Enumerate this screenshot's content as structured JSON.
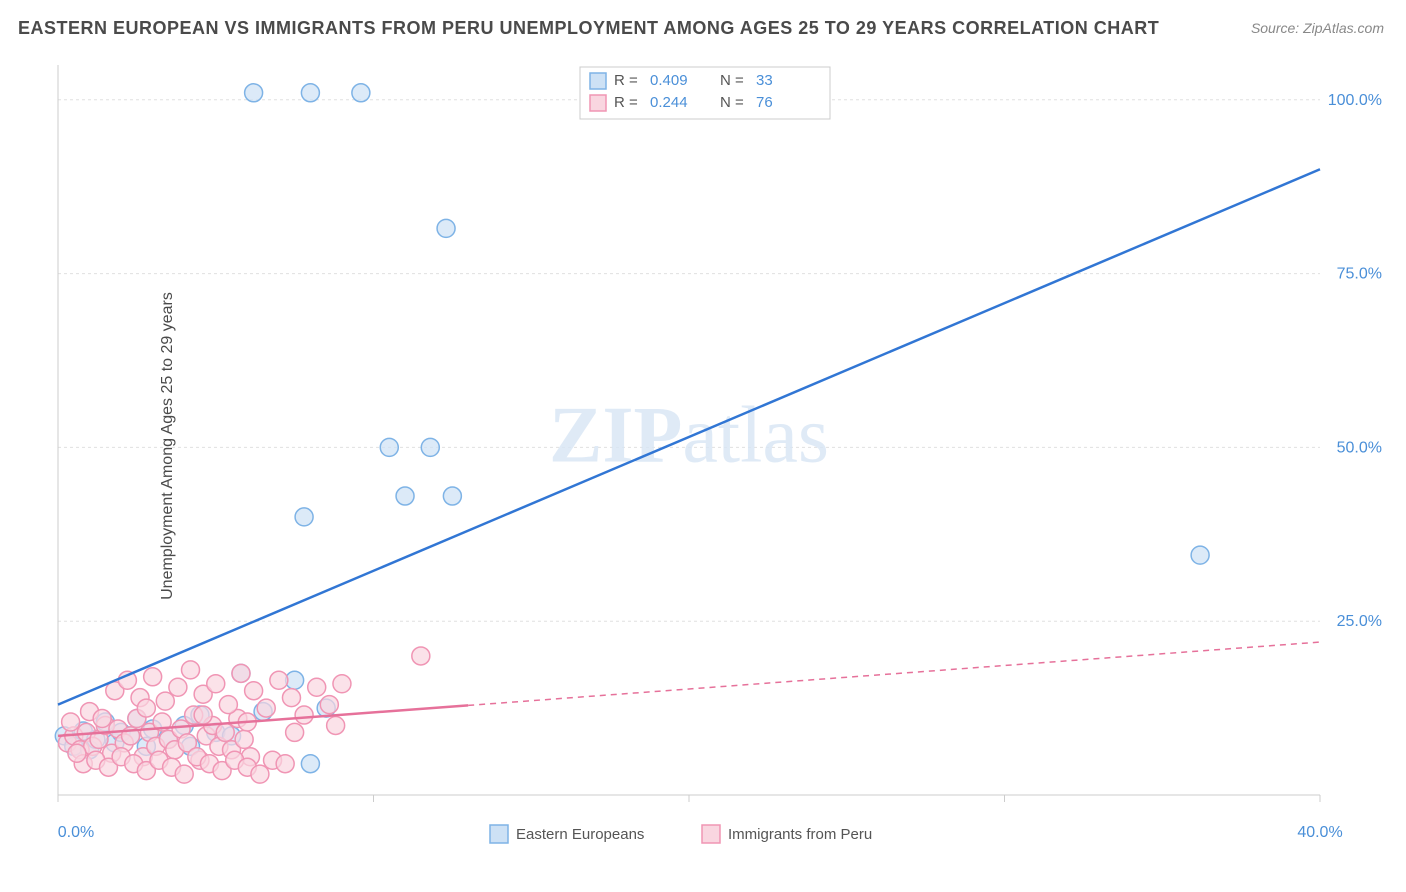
{
  "title": "EASTERN EUROPEAN VS IMMIGRANTS FROM PERU UNEMPLOYMENT AMONG AGES 25 TO 29 YEARS CORRELATION CHART",
  "source": "Source: ZipAtlas.com",
  "ylabel": "Unemployment Among Ages 25 to 29 years",
  "watermark": {
    "part1": "ZIP",
    "part2": "atlas"
  },
  "chart": {
    "type": "scatter",
    "xlim": [
      0,
      40
    ],
    "ylim": [
      0,
      105
    ],
    "x_ticks": [
      0,
      10,
      20,
      30,
      40
    ],
    "x_tick_labels": [
      "0.0%",
      "",
      "",
      "",
      "40.0%"
    ],
    "y_ticks": [
      25,
      50,
      75,
      100
    ],
    "y_tick_labels": [
      "25.0%",
      "50.0%",
      "75.0%",
      "100.0%"
    ],
    "background_color": "#ffffff",
    "grid_color": "#e0e0e0",
    "axis_color": "#cccccc",
    "marker_radius": 9,
    "marker_stroke_width": 1.5,
    "line_width": 2.5,
    "series": [
      {
        "name": "Eastern Europeans",
        "color_fill": "#cde1f5",
        "color_stroke": "#7eb3e6",
        "line_color": "#3176d4",
        "r_value": "0.409",
        "n_value": "33",
        "regression": {
          "x1": 0,
          "y1": 13,
          "x2": 40,
          "y2": 90,
          "solid_until_x": 40
        },
        "points": [
          [
            0.2,
            8.5
          ],
          [
            0.5,
            7.0
          ],
          [
            0.8,
            9.2
          ],
          [
            1.0,
            6.5
          ],
          [
            1.2,
            8.0
          ],
          [
            1.5,
            10.5
          ],
          [
            1.8,
            7.5
          ],
          [
            2.0,
            9.0
          ],
          [
            2.3,
            8.5
          ],
          [
            2.5,
            11.0
          ],
          [
            2.8,
            7.0
          ],
          [
            3.0,
            9.5
          ],
          [
            3.5,
            8.0
          ],
          [
            4.0,
            10.0
          ],
          [
            4.5,
            11.5
          ],
          [
            5.0,
            9.0
          ],
          [
            5.8,
            17.5
          ],
          [
            6.5,
            12.0
          ],
          [
            7.5,
            16.5
          ],
          [
            8.0,
            4.5
          ],
          [
            8.5,
            12.5
          ],
          [
            6.2,
            101
          ],
          [
            8.0,
            101
          ],
          [
            9.6,
            101
          ],
          [
            12.3,
            81.5
          ],
          [
            10.5,
            50.0
          ],
          [
            11.8,
            50.0
          ],
          [
            11.0,
            43.0
          ],
          [
            12.5,
            43.0
          ],
          [
            7.8,
            40.0
          ],
          [
            36.2,
            34.5
          ],
          [
            5.5,
            8.5
          ],
          [
            4.2,
            7.0
          ]
        ]
      },
      {
        "name": "Immigrants from Peru",
        "color_fill": "#f9d6e0",
        "color_stroke": "#f095b4",
        "line_color": "#e6719a",
        "r_value": "0.244",
        "n_value": "76",
        "regression": {
          "x1": 0,
          "y1": 8.5,
          "x2": 40,
          "y2": 22,
          "solid_until_x": 13
        },
        "points": [
          [
            0.3,
            7.5
          ],
          [
            0.5,
            8.5
          ],
          [
            0.7,
            6.5
          ],
          [
            0.9,
            9.0
          ],
          [
            1.1,
            7.0
          ],
          [
            1.3,
            8.0
          ],
          [
            1.5,
            10.0
          ],
          [
            1.7,
            6.0
          ],
          [
            1.9,
            9.5
          ],
          [
            2.1,
            7.5
          ],
          [
            2.3,
            8.5
          ],
          [
            2.5,
            11.0
          ],
          [
            2.7,
            5.5
          ],
          [
            2.9,
            9.0
          ],
          [
            3.1,
            7.0
          ],
          [
            3.3,
            10.5
          ],
          [
            3.5,
            8.0
          ],
          [
            3.7,
            6.5
          ],
          [
            3.9,
            9.5
          ],
          [
            4.1,
            7.5
          ],
          [
            4.3,
            11.5
          ],
          [
            4.5,
            5.0
          ],
          [
            4.7,
            8.5
          ],
          [
            4.9,
            10.0
          ],
          [
            5.1,
            7.0
          ],
          [
            5.3,
            9.0
          ],
          [
            5.5,
            6.5
          ],
          [
            5.7,
            11.0
          ],
          [
            5.9,
            8.0
          ],
          [
            6.1,
            5.5
          ],
          [
            1.8,
            15.0
          ],
          [
            2.2,
            16.5
          ],
          [
            2.6,
            14.0
          ],
          [
            3.0,
            17.0
          ],
          [
            3.4,
            13.5
          ],
          [
            3.8,
            15.5
          ],
          [
            4.2,
            18.0
          ],
          [
            4.6,
            14.5
          ],
          [
            5.0,
            16.0
          ],
          [
            5.4,
            13.0
          ],
          [
            5.8,
            17.5
          ],
          [
            6.2,
            15.0
          ],
          [
            6.6,
            12.5
          ],
          [
            7.0,
            16.5
          ],
          [
            7.4,
            14.0
          ],
          [
            7.8,
            11.5
          ],
          [
            8.2,
            15.5
          ],
          [
            8.6,
            13.0
          ],
          [
            9.0,
            16.0
          ],
          [
            0.8,
            4.5
          ],
          [
            1.2,
            5.0
          ],
          [
            1.6,
            4.0
          ],
          [
            2.0,
            5.5
          ],
          [
            2.4,
            4.5
          ],
          [
            2.8,
            3.5
          ],
          [
            3.2,
            5.0
          ],
          [
            3.6,
            4.0
          ],
          [
            4.0,
            3.0
          ],
          [
            4.4,
            5.5
          ],
          [
            4.8,
            4.5
          ],
          [
            5.2,
            3.5
          ],
          [
            5.6,
            5.0
          ],
          [
            6.0,
            4.0
          ],
          [
            6.4,
            3.0
          ],
          [
            6.8,
            5.0
          ],
          [
            7.2,
            4.5
          ],
          [
            1.0,
            12.0
          ],
          [
            1.4,
            11.0
          ],
          [
            2.8,
            12.5
          ],
          [
            4.6,
            11.5
          ],
          [
            6.0,
            10.5
          ],
          [
            7.5,
            9.0
          ],
          [
            8.8,
            10.0
          ],
          [
            11.5,
            20.0
          ],
          [
            0.4,
            10.5
          ],
          [
            0.6,
            6.0
          ]
        ]
      }
    ],
    "bottom_legend": [
      {
        "label": "Eastern Europeans",
        "swatch_fill": "#cde1f5",
        "swatch_stroke": "#7eb3e6"
      },
      {
        "label": "Immigrants from Peru",
        "swatch_fill": "#f9d6e0",
        "swatch_stroke": "#f095b4"
      }
    ]
  }
}
